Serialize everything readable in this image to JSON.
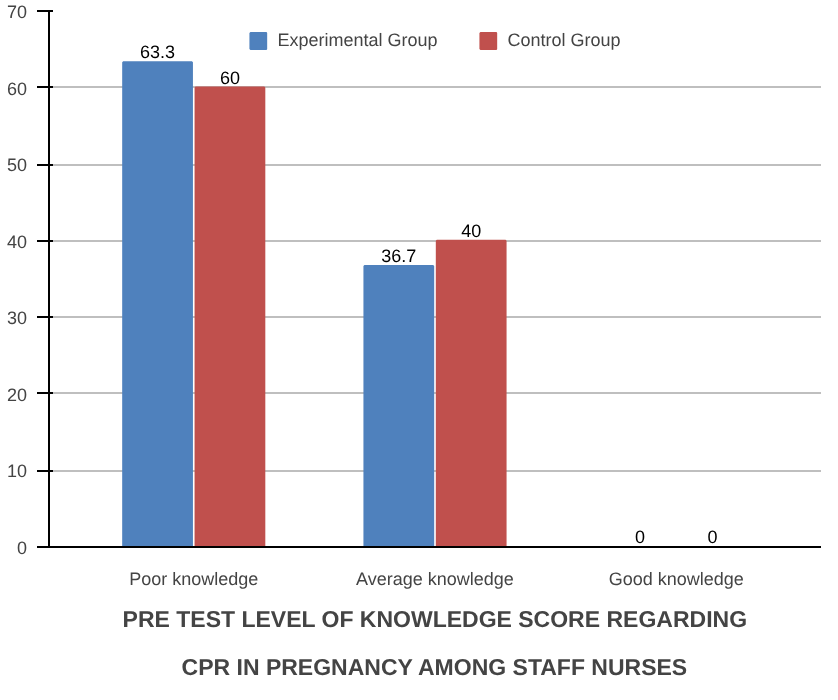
{
  "chart_data": {
    "type": "bar",
    "title": "PRE TEST LEVEL OF KNOWLEDGE SCORE REGARDING CPR IN PREGNANCY AMONG STAFF NURSES",
    "categories": [
      "Poor knowledge",
      "Average knowledge",
      "Good knowledge"
    ],
    "series": [
      {
        "name": "Experimental Group",
        "color": "#4f81bd",
        "values": [
          63.3,
          36.7,
          0
        ]
      },
      {
        "name": "Control Group",
        "color": "#c0504d",
        "values": [
          60,
          40,
          0
        ]
      }
    ],
    "ylim": [
      0,
      70
    ],
    "yticks": [
      0,
      10,
      20,
      30,
      40,
      50,
      60,
      70
    ],
    "grid": "y",
    "legend": "top",
    "data_labels": true
  }
}
